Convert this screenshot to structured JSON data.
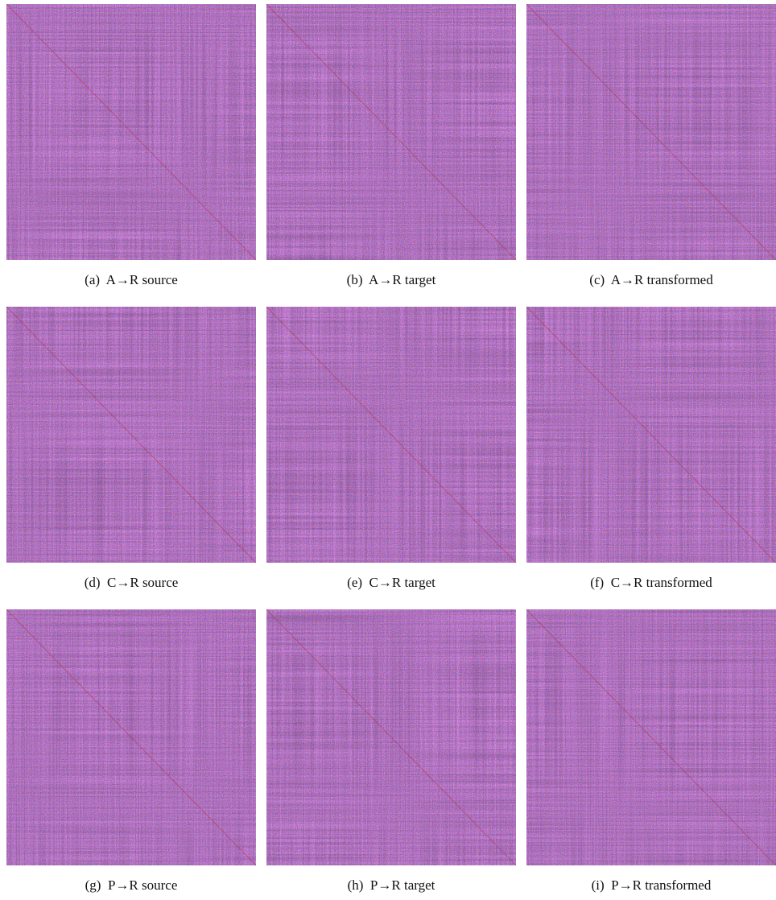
{
  "panels": [
    {
      "caption": "(a)  A→R source"
    },
    {
      "caption": "(b)  A→R target"
    },
    {
      "caption": "(c)  A→R transformed"
    },
    {
      "caption": "(d)  C→R source"
    },
    {
      "caption": "(e)  C→R target"
    },
    {
      "caption": "(f)  C→R transformed"
    },
    {
      "caption": "(g)  P→R source"
    },
    {
      "caption": "(h)  P→R target"
    },
    {
      "caption": "(i)  P→R transformed"
    }
  ]
}
